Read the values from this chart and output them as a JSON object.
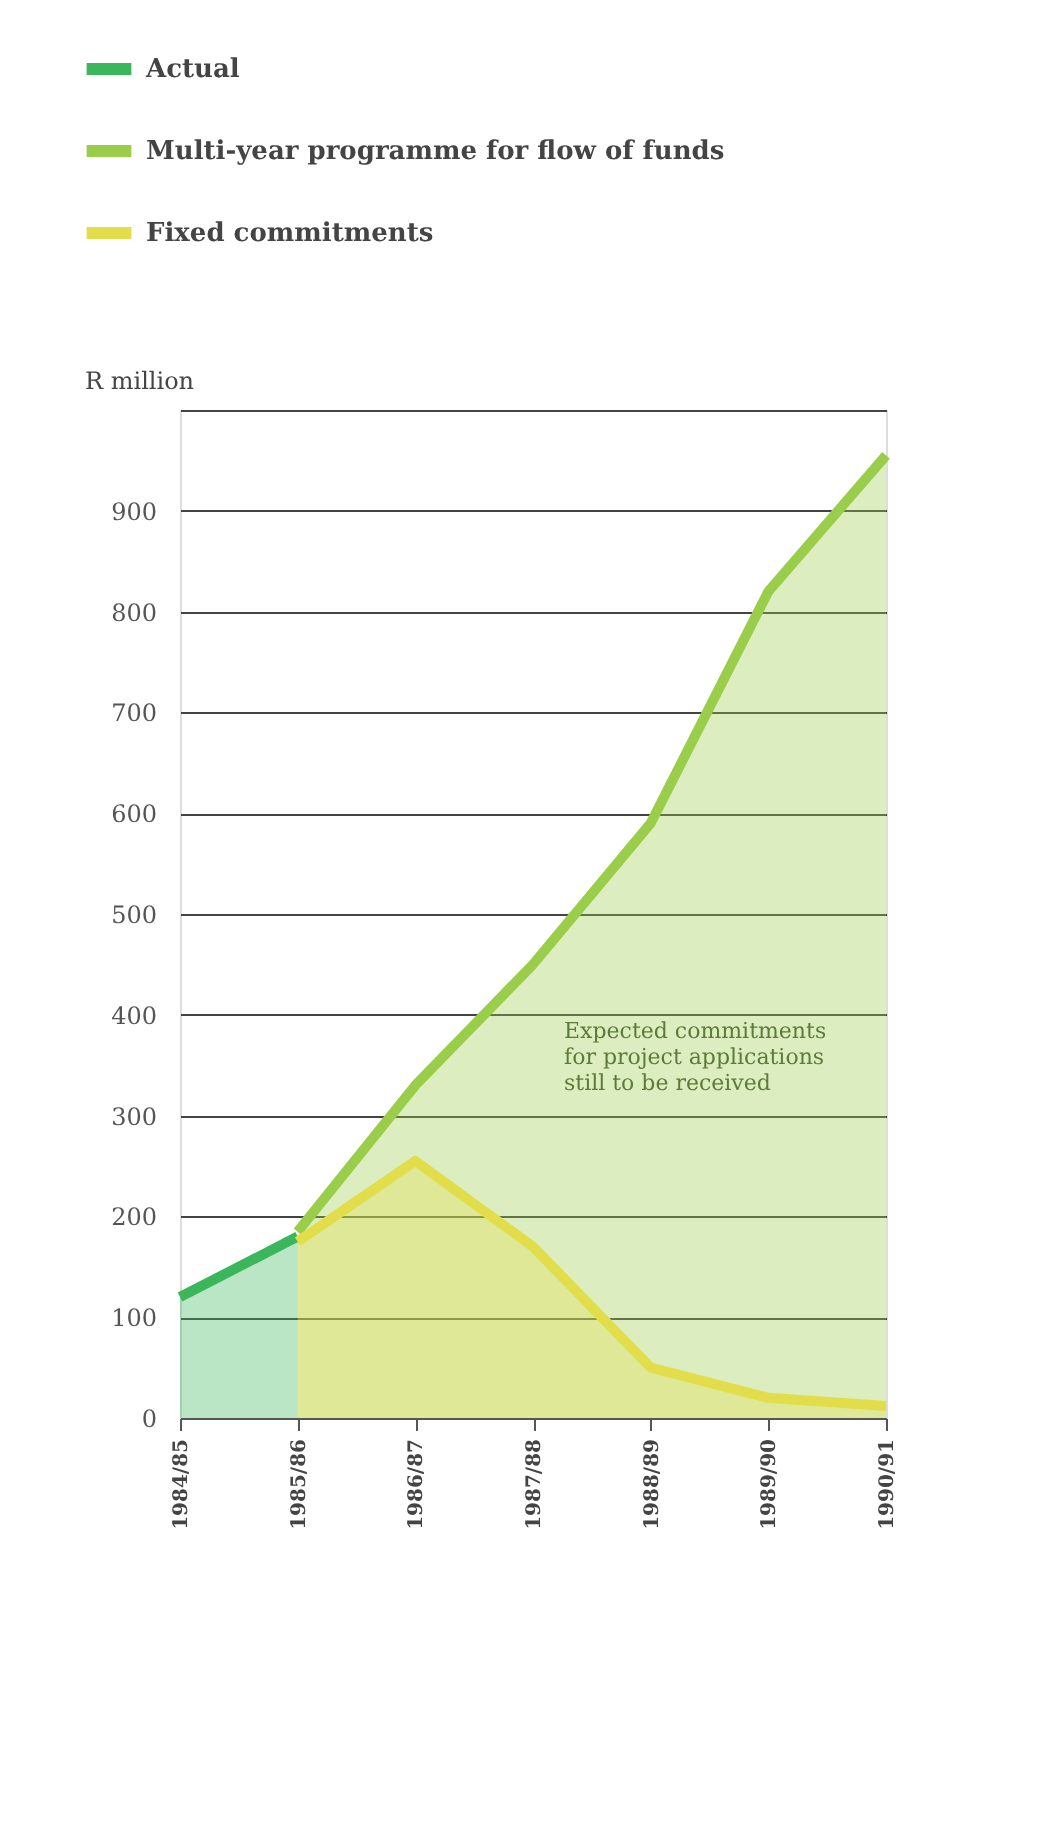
{
  "chart_data": {
    "type": "area",
    "ylabel": "R million",
    "categories": [
      "1984/85",
      "1985/86",
      "1986/87",
      "1987/88",
      "1988/89",
      "1989/90",
      "1990/91"
    ],
    "series": [
      {
        "name": "Actual",
        "color": "#3cb65a",
        "values": [
          120,
          180,
          null,
          null,
          null,
          null,
          null
        ]
      },
      {
        "name": "Multi-year programme for flow of funds",
        "color": "#9acd4a",
        "values": [
          null,
          185,
          330,
          450,
          590,
          820,
          955
        ]
      },
      {
        "name": "Fixed commitments",
        "color": "#e2dd4a",
        "values": [
          null,
          175,
          255,
          170,
          50,
          20,
          12
        ]
      }
    ],
    "ylim": [
      0,
      1000
    ],
    "yticks": [
      0,
      100,
      200,
      300,
      400,
      500,
      600,
      700,
      800,
      900,
      {
        "value": 1000,
        "label": null
      }
    ],
    "grid": "y",
    "legend": "top",
    "line_style": "solid",
    "annotations": [
      "Expected commitments\nfor project applications\nstill to be received"
    ]
  }
}
